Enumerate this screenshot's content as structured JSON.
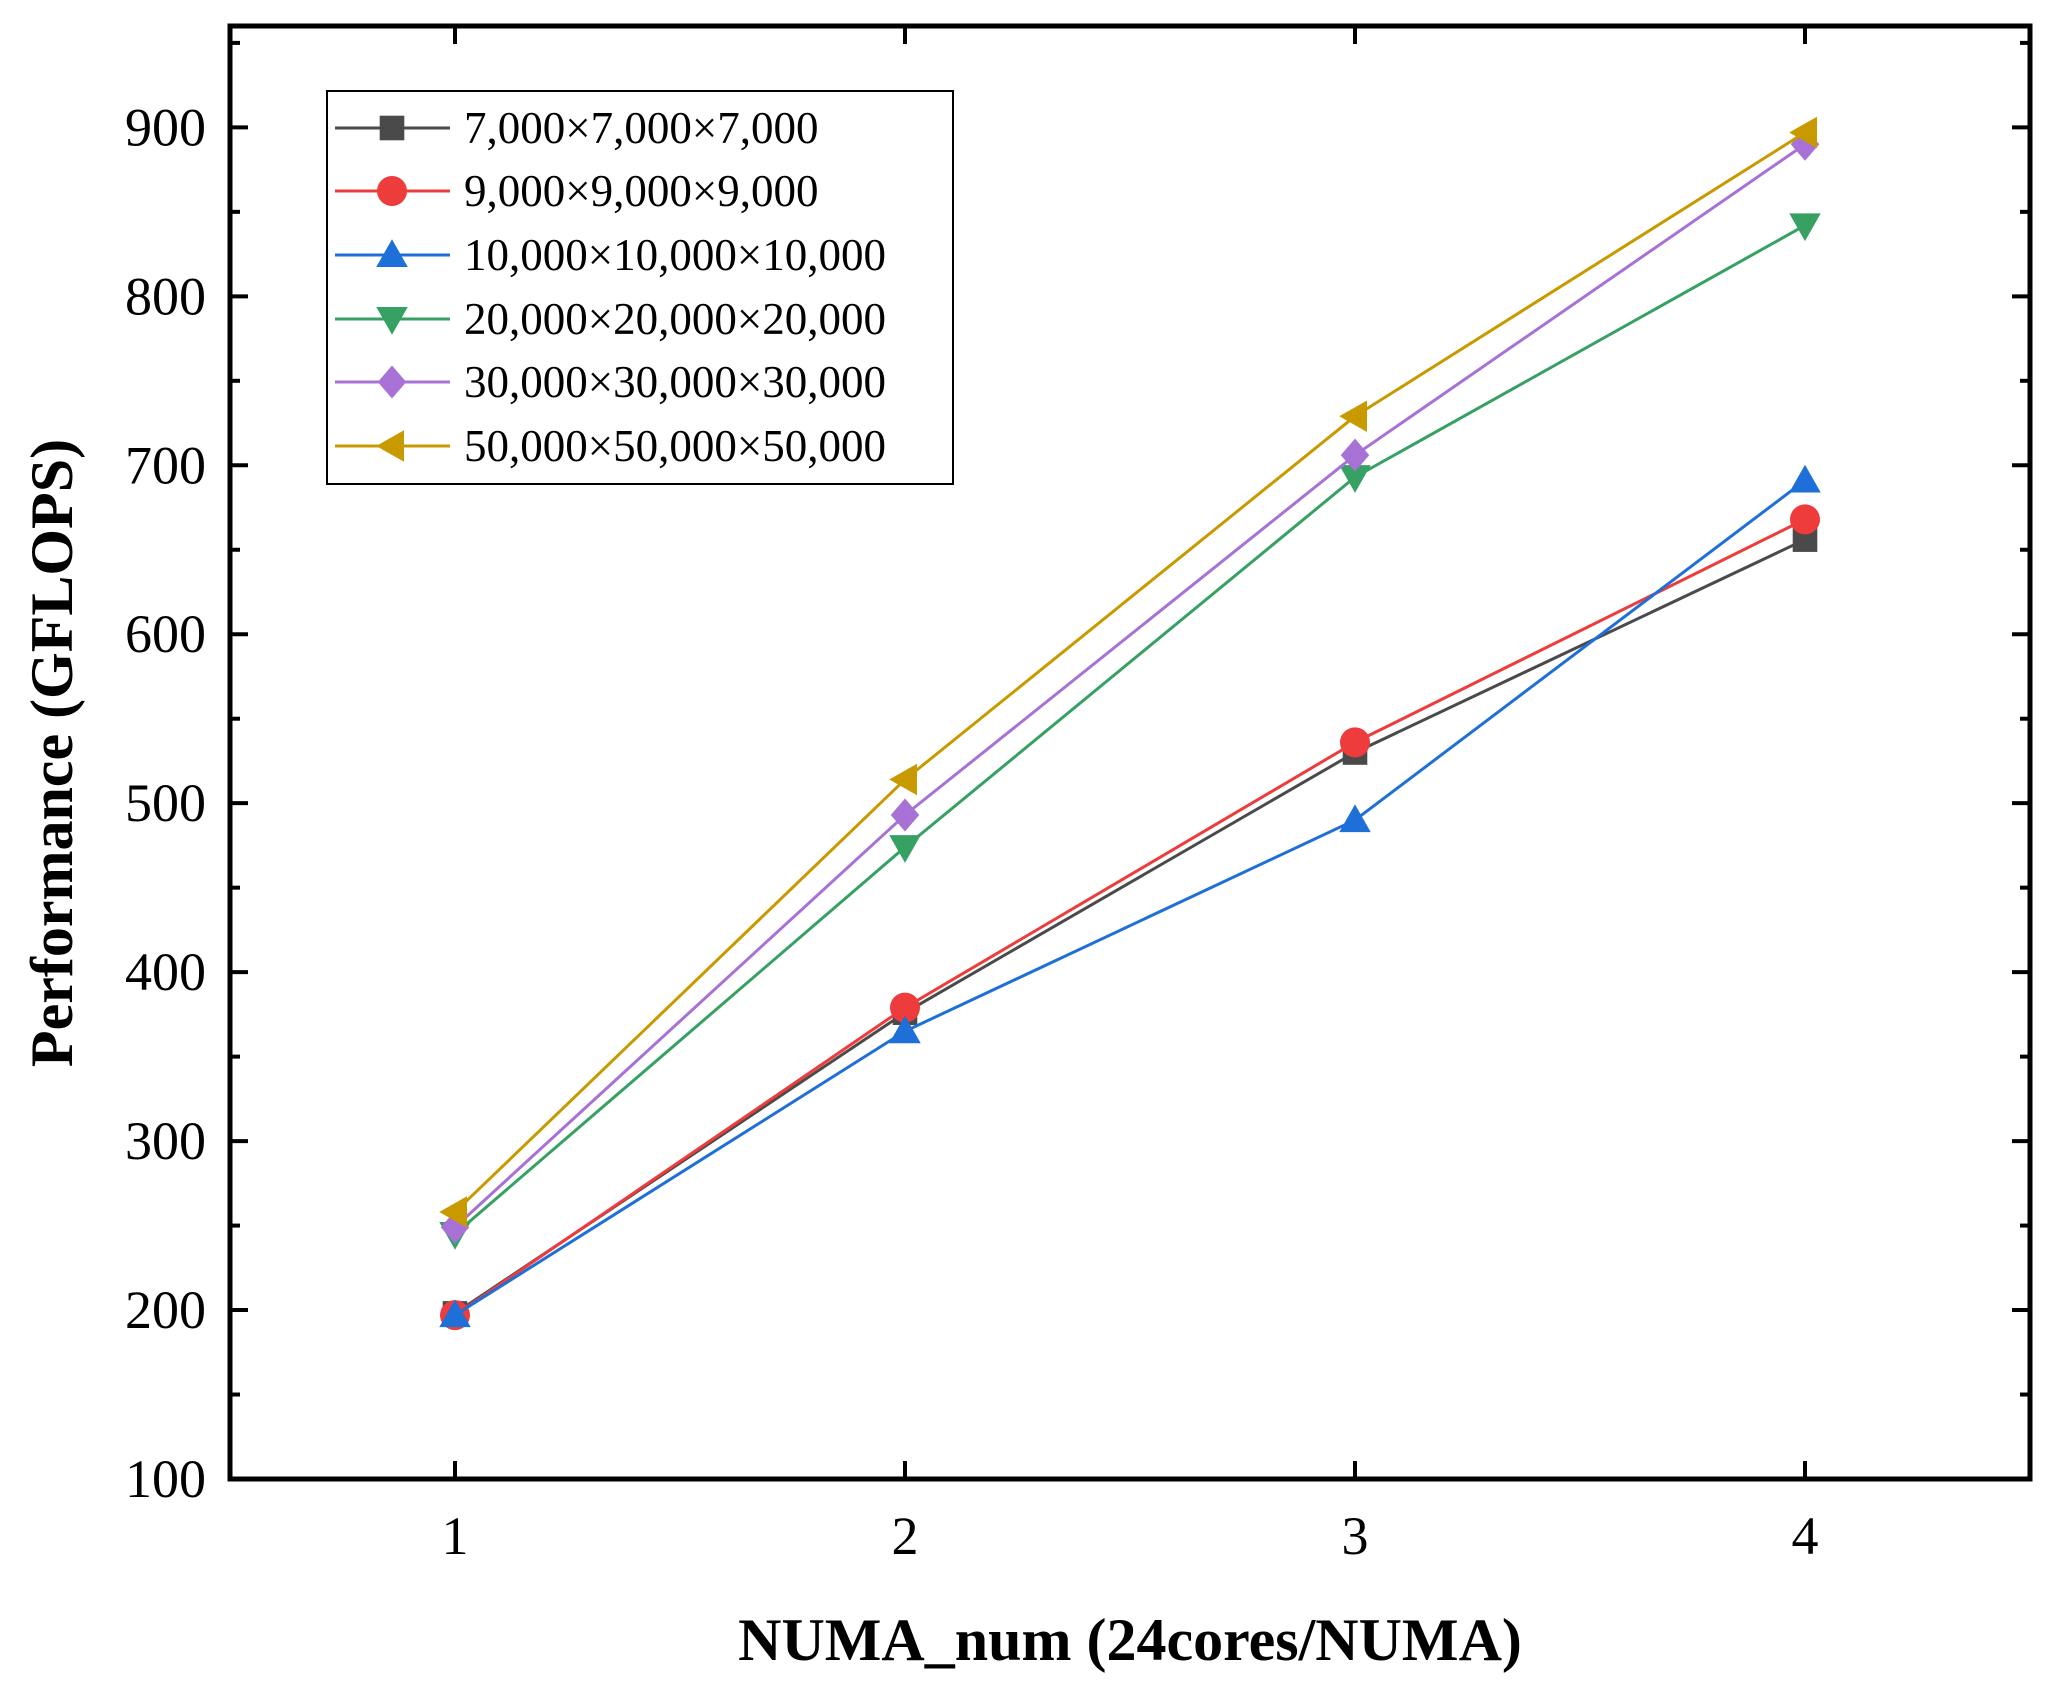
{
  "chart_data": {
    "type": "line",
    "title": "",
    "xlabel": "NUMA_num (24cores/NUMA)",
    "ylabel": "Performance (GFLOPS)",
    "x": [
      1,
      2,
      3,
      4
    ],
    "xlim": [
      0.5,
      4.5
    ],
    "ylim": [
      100,
      960
    ],
    "xticks": [
      1,
      2,
      3,
      4
    ],
    "yticks": [
      100,
      200,
      300,
      400,
      500,
      600,
      700,
      800,
      900
    ],
    "grid": false,
    "legend_position": "top-left",
    "series": [
      {
        "name": "7,000×7,000×7,000",
        "color": "#4a4a4a",
        "marker": "square",
        "values": [
          198,
          376,
          530,
          656
        ]
      },
      {
        "name": "9,000×9,000×9,000",
        "color": "#ee3b3b",
        "marker": "circle",
        "values": [
          197,
          379,
          536,
          668
        ]
      },
      {
        "name": "10,000×10,000×10,000",
        "color": "#1f6fd8",
        "marker": "triangle-up",
        "values": [
          197,
          365,
          490,
          691
        ]
      },
      {
        "name": "20,000×20,000×20,000",
        "color": "#36a163",
        "marker": "triangle-down",
        "values": [
          245,
          474,
          693,
          842
        ]
      },
      {
        "name": "30,000×30,000×30,000",
        "color": "#a771d6",
        "marker": "diamond",
        "values": [
          249,
          493,
          706,
          890
        ]
      },
      {
        "name": "50,000×50,000×50,000",
        "color": "#c89a00",
        "marker": "triangle-left",
        "values": [
          258,
          514,
          729,
          897
        ]
      }
    ]
  }
}
